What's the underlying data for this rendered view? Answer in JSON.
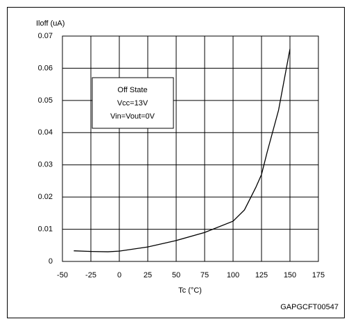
{
  "chart_data": {
    "type": "line",
    "y_label": "Iloff (uA)",
    "x_label": "Tc (°C)",
    "source": "GAPGCFT00547",
    "annotation": [
      "Off State",
      "Vcc=13V",
      "Vin=Vout=0V"
    ],
    "x": [
      -40,
      -25,
      -10,
      0,
      25,
      50,
      75,
      100,
      110,
      120,
      125,
      130,
      140,
      150
    ],
    "values": [
      0.0033,
      0.0031,
      0.003,
      0.0032,
      0.0045,
      0.0065,
      0.009,
      0.0125,
      0.016,
      0.023,
      0.027,
      0.034,
      0.047,
      0.066
    ],
    "color": "#000000",
    "xlim": [
      -50,
      175
    ],
    "xticks": [
      -50,
      -25,
      0,
      25,
      50,
      75,
      100,
      125,
      150,
      175
    ],
    "ylim": [
      0,
      0.07
    ],
    "yticks": [
      0,
      0.01,
      0.02,
      0.03,
      0.04,
      0.05,
      0.06,
      0.07
    ],
    "grid": true
  }
}
